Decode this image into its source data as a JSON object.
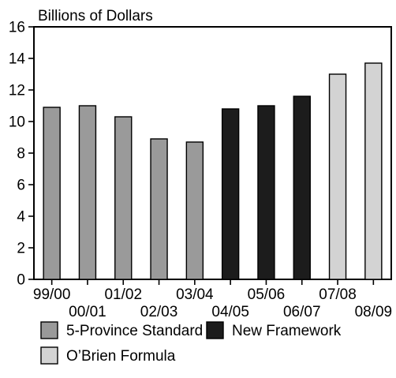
{
  "chart_data": {
    "type": "bar",
    "ylabel": "Billions of Dollars",
    "ylim": [
      0,
      16
    ],
    "yticks": [
      0,
      2,
      4,
      6,
      8,
      10,
      12,
      14,
      16
    ],
    "grid": false,
    "legend_position": "bottom",
    "categories": [
      "99/00",
      "00/01",
      "01/02",
      "02/03",
      "03/04",
      "04/05",
      "05/06",
      "06/07",
      "07/08",
      "08/09"
    ],
    "values": [
      10.9,
      11.0,
      10.3,
      8.9,
      8.7,
      10.8,
      11.0,
      11.6,
      13.0,
      13.7
    ],
    "groups": [
      "5-Province Standard",
      "5-Province Standard",
      "5-Province Standard",
      "5-Province Standard",
      "5-Province Standard",
      "New Framework",
      "New Framework",
      "New Framework",
      "O'Brien Formula",
      "O'Brien Formula"
    ],
    "legend": [
      {
        "name": "5-Province Standard",
        "color": "#9a9a9a"
      },
      {
        "name": "New Framework",
        "color": "#1c1c1c"
      },
      {
        "name": "O’Brien Formula",
        "color": "#d3d3d3"
      }
    ]
  }
}
